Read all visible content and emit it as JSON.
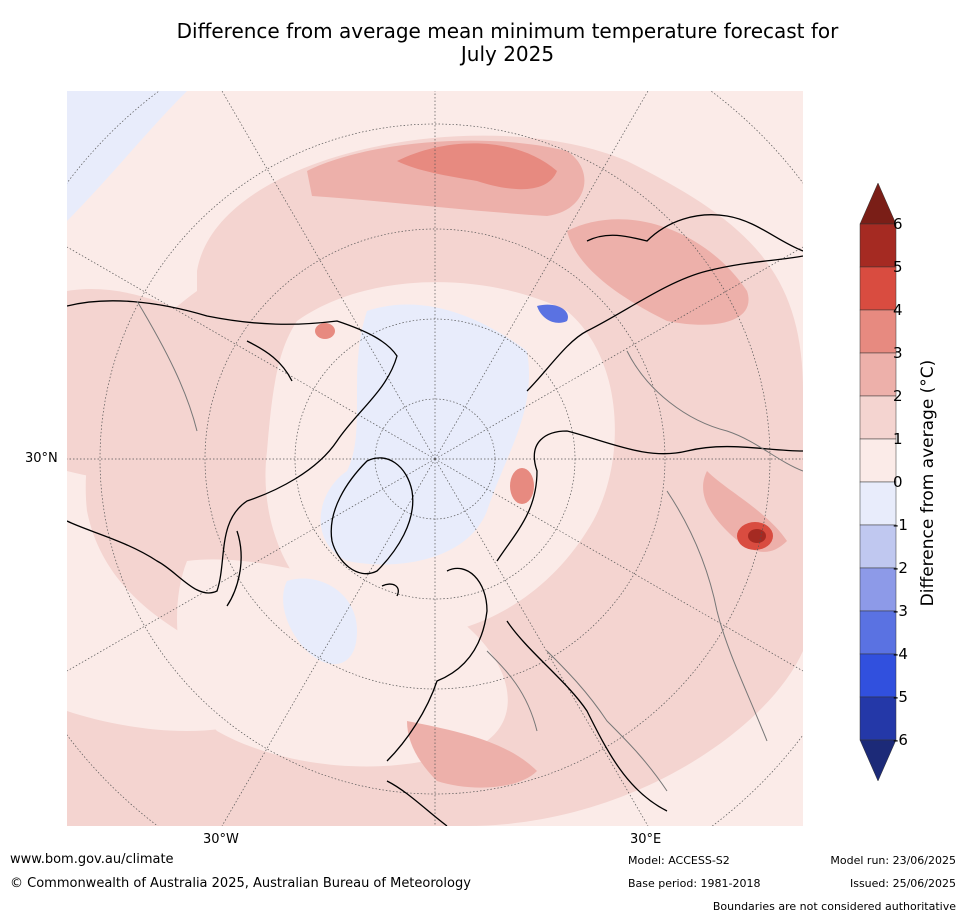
{
  "title_line1": "Difference from average mean minimum temperature forecast for",
  "title_line2": "July 2025",
  "map": {
    "lat_label": "30°N",
    "lon_labels": [
      "30°W",
      "30°E"
    ]
  },
  "colorbar": {
    "label": "Difference from average (°C)",
    "ticks": [
      "6",
      "5",
      "4",
      "3",
      "2",
      "1",
      "0",
      "-1",
      "-2",
      "-3",
      "-4",
      "-5",
      "-6"
    ],
    "colors": {
      "over6": "#7a1e17",
      "5to6": "#a52a22",
      "4to5": "#d94c40",
      "3to4": "#e78a80",
      "2to3": "#edb0aa",
      "1to2": "#f4d4d0",
      "0to1": "#fbebe8",
      "m1to0": "#e8ecfb",
      "m2tom1": "#c0c8f0",
      "m3tom2": "#8d9ae8",
      "m4tom3": "#5a72e2",
      "m5tom4": "#3150de",
      "m6tom5": "#2438a8",
      "under_m6": "#1c2a78"
    }
  },
  "footer": {
    "website": "www.bom.gov.au/climate",
    "copyright": "© Commonwealth of Australia 2025, Australian Bureau of Meteorology",
    "model": "Model: ACCESS-S2",
    "base_period": "Base period: 1981-2018",
    "model_run": "Model run: 23/06/2025",
    "issued": "Issued: 25/06/2025",
    "disclaimer": "Boundaries are not considered authoritative"
  }
}
